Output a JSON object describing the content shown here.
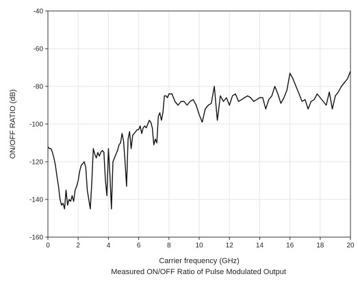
{
  "chart_data": {
    "type": "line",
    "title": "",
    "caption": "Measured ON/OFF Ratio of Pulse Modulated Output",
    "xlabel": "Carrier frequency (GHz)",
    "ylabel": "ON/OFF RATIO (dB)",
    "xlim": [
      0,
      20
    ],
    "ylim": [
      -160,
      -40
    ],
    "xticks": [
      0,
      2,
      4,
      6,
      8,
      10,
      12,
      14,
      16,
      18,
      20
    ],
    "yticks": [
      -160,
      -140,
      -120,
      -100,
      -80,
      -60,
      -40
    ],
    "grid": true,
    "series": [
      {
        "color": "#111111",
        "x": [
          0.0,
          0.1,
          0.2,
          0.3,
          0.4,
          0.5,
          0.6,
          0.7,
          0.8,
          0.9,
          1.0,
          1.1,
          1.2,
          1.3,
          1.4,
          1.5,
          1.6,
          1.7,
          1.8,
          1.9,
          2.0,
          2.1,
          2.2,
          2.3,
          2.4,
          2.5,
          2.6,
          2.7,
          2.8,
          2.9,
          3.0,
          3.1,
          3.2,
          3.3,
          3.4,
          3.5,
          3.6,
          3.7,
          3.8,
          3.9,
          4.0,
          4.1,
          4.2,
          4.3,
          4.4,
          4.5,
          4.6,
          4.7,
          4.8,
          4.9,
          5.0,
          5.1,
          5.2,
          5.3,
          5.4,
          5.5,
          5.6,
          5.7,
          5.8,
          5.9,
          6.0,
          6.1,
          6.2,
          6.3,
          6.4,
          6.5,
          6.6,
          6.7,
          6.8,
          6.9,
          7.0,
          7.1,
          7.2,
          7.3,
          7.4,
          7.5,
          7.6,
          7.7,
          7.8,
          7.9,
          8.0,
          8.2,
          8.4,
          8.6,
          8.8,
          9.0,
          9.2,
          9.4,
          9.6,
          9.8,
          10.0,
          10.2,
          10.4,
          10.6,
          10.8,
          11.0,
          11.2,
          11.4,
          11.6,
          11.8,
          12.0,
          12.2,
          12.4,
          12.6,
          12.8,
          13.0,
          13.2,
          13.4,
          13.6,
          13.8,
          14.0,
          14.2,
          14.4,
          14.6,
          14.8,
          15.0,
          15.2,
          15.4,
          15.6,
          15.8,
          16.0,
          16.2,
          16.4,
          16.6,
          16.8,
          17.0,
          17.2,
          17.4,
          17.6,
          17.8,
          18.0,
          18.2,
          18.4,
          18.6,
          18.8,
          19.0,
          19.2,
          19.4,
          19.6,
          19.8,
          20.0
        ],
        "y": [
          -112,
          -113,
          -113,
          -115,
          -118,
          -122,
          -128,
          -133,
          -140,
          -143,
          -142,
          -145,
          -135,
          -143,
          -140,
          -141,
          -138,
          -141,
          -135,
          -133,
          -130,
          -125,
          -122,
          -121,
          -120,
          -123,
          -135,
          -140,
          -145,
          -131,
          -113,
          -116,
          -118,
          -115,
          -117,
          -115,
          -114,
          -115,
          -130,
          -138,
          -113,
          -127,
          -145,
          -120,
          -118,
          -116,
          -114,
          -111,
          -110,
          -105,
          -109,
          -120,
          -133,
          -108,
          -104,
          -113,
          -106,
          -105,
          -104,
          -103,
          -103,
          -101,
          -105,
          -102,
          -101,
          -102,
          -100,
          -98,
          -99,
          -102,
          -111,
          -108,
          -110,
          -96,
          -94,
          -98,
          -94,
          -85,
          -85,
          -86,
          -84,
          -84,
          -88,
          -90,
          -88,
          -88,
          -90,
          -88,
          -87,
          -90,
          -95,
          -99,
          -92,
          -90,
          -89,
          -80,
          -98,
          -85,
          -88,
          -86,
          -90,
          -85,
          -84,
          -88,
          -87,
          -86,
          -85,
          -86,
          -88,
          -87,
          -86,
          -86,
          -92,
          -87,
          -85,
          -80,
          -84,
          -89,
          -86,
          -82,
          -73,
          -76,
          -80,
          -84,
          -88,
          -87,
          -92,
          -88,
          -87,
          -84,
          -86,
          -88,
          -90,
          -83,
          -92,
          -85,
          -83,
          -80,
          -78,
          -76,
          -72
        ]
      }
    ]
  }
}
